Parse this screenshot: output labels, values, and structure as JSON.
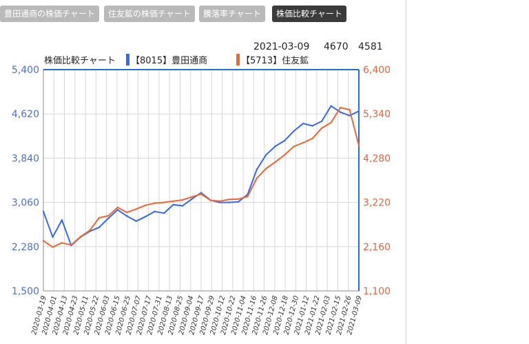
{
  "tabs": [
    {
      "label": "豊田通商の株価チャート",
      "active": false
    },
    {
      "label": "住友鉱の株価チャート",
      "active": false
    },
    {
      "label": "騰落率チャート",
      "active": false
    },
    {
      "label": "株価比較チャート",
      "active": true
    }
  ],
  "info": {
    "date": "2021-03-09",
    "value1": "4670",
    "value2": "4581"
  },
  "chart_data": {
    "type": "line",
    "title": "株価比較チャート",
    "grid": true,
    "colors": {
      "series1": "#3366ff",
      "series2": "#f2652e",
      "axis_left": "#4a6fd8",
      "axis_right": "#e8643a"
    },
    "legend": [
      "【8015】豊田通商",
      "【5713】住友鉱"
    ],
    "y_left": {
      "ticks": [
        "5,400",
        "4,620",
        "3,840",
        "3,060",
        "2,280",
        "1,500"
      ],
      "lim": [
        1500,
        5400
      ]
    },
    "y_right": {
      "ticks": [
        "6,400",
        "5,340",
        "4,280",
        "3,220",
        "2,160",
        "1,100"
      ],
      "lim": [
        1100,
        6400
      ]
    },
    "x_ticks": [
      "2020-03-19",
      "2020-04-01",
      "2020-04-13",
      "2020-04-23",
      "2020-05-11",
      "2020-05-22",
      "2020-06-03",
      "2020-06-15",
      "2020-06-25",
      "2020-07-07",
      "2020-07-17",
      "2020-07-31",
      "2020-08-13",
      "2020-08-25",
      "2020-09-04",
      "2020-09-17",
      "2020-09-29",
      "2020-10-12",
      "2020-10-22",
      "2020-11-04",
      "2020-11-16",
      "2020-11-26",
      "2020-12-08",
      "2020-12-18",
      "2020-12-30",
      "2021-01-12",
      "2021-01-22",
      "2021-02-03",
      "2021-02-15",
      "2021-02-26",
      "2021-03-09"
    ],
    "x": [
      "2020-03-09",
      "2020-03-19",
      "2020-03-31",
      "2020-04-13",
      "2020-04-24",
      "2020-05-08",
      "2020-05-19",
      "2020-06-01",
      "2020-06-10",
      "2020-06-22",
      "2020-07-02",
      "2020-07-13",
      "2020-07-22",
      "2020-08-03",
      "2020-08-13",
      "2020-08-24",
      "2020-09-03",
      "2020-09-14",
      "2020-09-24",
      "2020-10-06",
      "2020-10-15",
      "2020-10-26",
      "2020-11-05",
      "2020-11-16",
      "2020-11-26",
      "2020-12-07",
      "2020-12-17",
      "2020-12-28",
      "2021-01-08",
      "2021-01-20",
      "2021-01-29",
      "2021-02-09",
      "2021-02-19",
      "2021-03-02",
      "2021-03-09"
    ],
    "series": [
      {
        "name": "【8015】豊田通商",
        "axis": "left",
        "values": [
          2900,
          2450,
          2750,
          2300,
          2450,
          2550,
          2620,
          2780,
          2930,
          2820,
          2730,
          2810,
          2900,
          2870,
          3020,
          3000,
          3120,
          3230,
          3100,
          3060,
          3060,
          3070,
          3200,
          3640,
          3900,
          4050,
          4150,
          4320,
          4450,
          4410,
          4490,
          4760,
          4650,
          4590,
          4670
        ]
      },
      {
        "name": "【5713】住友鉱",
        "axis": "right",
        "values": [
          2300,
          2150,
          2250,
          2200,
          2400,
          2550,
          2850,
          2900,
          3100,
          2980,
          3060,
          3150,
          3200,
          3220,
          3250,
          3280,
          3350,
          3420,
          3270,
          3250,
          3290,
          3300,
          3360,
          3800,
          4030,
          4190,
          4360,
          4560,
          4650,
          4750,
          5000,
          5130,
          5490,
          5440,
          4581
        ]
      }
    ]
  }
}
